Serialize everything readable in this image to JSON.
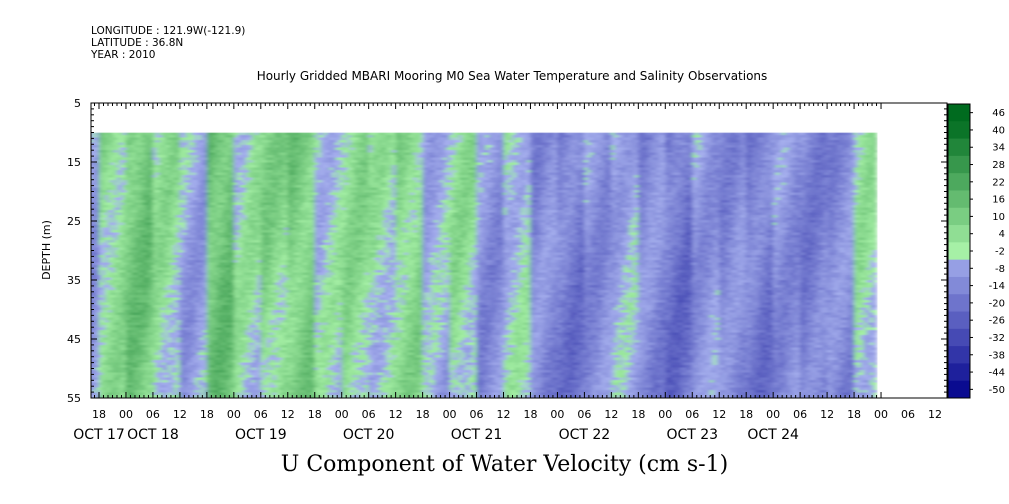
{
  "header": {
    "longitude": "LONGITUDE : 121.9W(-121.9)",
    "latitude": "LATITUDE : 36.8N",
    "year": "YEAR : 2010"
  },
  "chart_data": {
    "type": "heatmap",
    "title": "Hourly Gridded MBARI Mooring M0 Sea Water Temperature and Salinity Observations",
    "xlabel": "U Component of Water Velocity (cm s-1)",
    "ylabel": "DEPTH (m)",
    "ylim": [
      5,
      55
    ],
    "y_ticks": [
      5,
      15,
      25,
      35,
      45,
      55
    ],
    "data_depth_range": [
      10,
      55
    ],
    "x_range_hours": [
      "OCT 17 12:00",
      "OCT 24 23:00"
    ],
    "x_ticks_hour_labels": [
      "18",
      "00",
      "06",
      "12",
      "18",
      "00",
      "06",
      "12",
      "18",
      "00",
      "06",
      "12",
      "18",
      "00",
      "06",
      "12",
      "18",
      "00",
      "06",
      "12",
      "18",
      "00",
      "06",
      "12",
      "18",
      "00",
      "06",
      "12",
      "18",
      "00",
      "06",
      "12"
    ],
    "x_day_labels": [
      "OCT 17",
      "OCT 18",
      "OCT 19",
      "OCT 20",
      "OCT 21",
      "OCT 22",
      "OCT 23",
      "OCT 24"
    ],
    "colorbar": {
      "levels": [
        -50,
        -44,
        -38,
        -32,
        -26,
        -20,
        -14,
        -8,
        -2,
        4,
        10,
        16,
        22,
        28,
        34,
        40,
        46
      ],
      "label_values": [
        "46",
        "40",
        "34",
        "28",
        "22",
        "16",
        "10",
        "4",
        "-2",
        "-8",
        "-14",
        "-20",
        "-26",
        "-32",
        "-38",
        "-44",
        "-50"
      ]
    },
    "velocity_bands": [
      {
        "from": "OCT 17 12:00",
        "to": "OCT 17 18:00",
        "u": -6
      },
      {
        "from": "OCT 17 18:00",
        "to": "OCT 18 00:00",
        "u": 8
      },
      {
        "from": "OCT 18 00:00",
        "to": "OCT 18 06:00",
        "u": 16
      },
      {
        "from": "OCT 18 06:00",
        "to": "OCT 18 12:00",
        "u": 6
      },
      {
        "from": "OCT 18 12:00",
        "to": "OCT 18 18:00",
        "u": -4
      },
      {
        "from": "OCT 18 18:00",
        "to": "OCT 19 00:00",
        "u": 18
      },
      {
        "from": "OCT 19 00:00",
        "to": "OCT 19 06:00",
        "u": 4
      },
      {
        "from": "OCT 19 06:00",
        "to": "OCT 19 12:00",
        "u": 10
      },
      {
        "from": "OCT 19 12:00",
        "to": "OCT 19 18:00",
        "u": 14
      },
      {
        "from": "OCT 19 18:00",
        "to": "OCT 20 00:00",
        "u": 2
      },
      {
        "from": "OCT 20 00:00",
        "to": "OCT 20 06:00",
        "u": 8
      },
      {
        "from": "OCT 20 06:00",
        "to": "OCT 20 12:00",
        "u": 4
      },
      {
        "from": "OCT 20 12:00",
        "to": "OCT 20 18:00",
        "u": 10
      },
      {
        "from": "OCT 20 18:00",
        "to": "OCT 21 00:00",
        "u": -2
      },
      {
        "from": "OCT 21 00:00",
        "to": "OCT 21 06:00",
        "u": 6
      },
      {
        "from": "OCT 21 06:00",
        "to": "OCT 21 12:00",
        "u": -8
      },
      {
        "from": "OCT 21 12:00",
        "to": "OCT 21 18:00",
        "u": 2
      },
      {
        "from": "OCT 21 18:00",
        "to": "OCT 22 00:00",
        "u": -10
      },
      {
        "from": "OCT 22 00:00",
        "to": "OCT 22 06:00",
        "u": -14
      },
      {
        "from": "OCT 22 06:00",
        "to": "OCT 22 12:00",
        "u": -8
      },
      {
        "from": "OCT 22 12:00",
        "to": "OCT 22 18:00",
        "u": -2
      },
      {
        "from": "OCT 22 18:00",
        "to": "OCT 23 00:00",
        "u": -10
      },
      {
        "from": "OCT 23 00:00",
        "to": "OCT 23 06:00",
        "u": -16
      },
      {
        "from": "OCT 23 06:00",
        "to": "OCT 23 12:00",
        "u": -6
      },
      {
        "from": "OCT 23 12:00",
        "to": "OCT 23 18:00",
        "u": -10
      },
      {
        "from": "OCT 23 18:00",
        "to": "OCT 24 00:00",
        "u": -14
      },
      {
        "from": "OCT 24 00:00",
        "to": "OCT 24 06:00",
        "u": -8
      },
      {
        "from": "OCT 24 06:00",
        "to": "OCT 24 12:00",
        "u": -12
      },
      {
        "from": "OCT 24 12:00",
        "to": "OCT 24 18:00",
        "u": -10
      },
      {
        "from": "OCT 24 18:00",
        "to": "OCT 24 23:00",
        "u": 4
      }
    ],
    "colors": {
      "plot_background": "#ffffff",
      "negative_light": "#aab4f0",
      "negative_dark": "#00008a",
      "positive_light": "#a6f0a6",
      "positive_dark": "#006b1f"
    }
  }
}
